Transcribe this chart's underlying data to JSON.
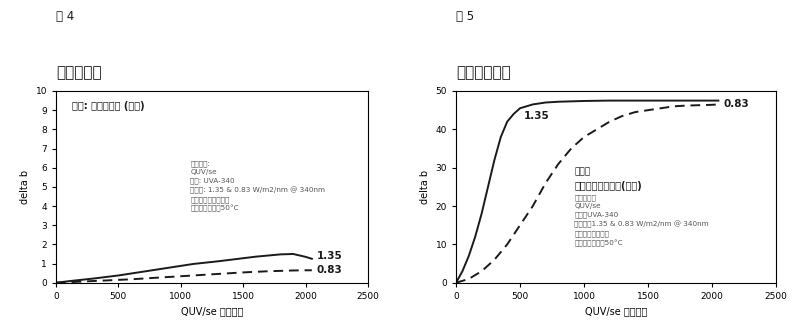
{
  "fig4": {
    "title_top": "图 4",
    "title_sub": "丙烯酸黄变",
    "material_label_bold": "材料: 丙烯酸薄片 (透明)",
    "annotation_text": "测试条件:\nQUV/se\n光源: UVA-340\n辐照度: 1.35 & 0.83 W/m2/nm @ 340nm\n循环：仅有紫外循环\n温度：黑板温度50°C",
    "xlabel": "QUV/se 暴露时间",
    "ylabel": "delta b",
    "xlim": [
      0,
      2500
    ],
    "ylim": [
      0,
      10
    ],
    "yticks": [
      0,
      1,
      2,
      3,
      4,
      5,
      6,
      7,
      8,
      9,
      10
    ],
    "xticks": [
      0,
      500,
      1000,
      1500,
      2000,
      2500
    ],
    "label_135": "1.35",
    "label_083": "0.83",
    "curve135_x": [
      0,
      100,
      200,
      300,
      400,
      500,
      600,
      700,
      800,
      900,
      1000,
      1100,
      1200,
      1300,
      1400,
      1500,
      1600,
      1700,
      1800,
      1900,
      2000,
      2050
    ],
    "curve135_y": [
      0.0,
      0.08,
      0.15,
      0.22,
      0.3,
      0.38,
      0.48,
      0.58,
      0.68,
      0.78,
      0.88,
      0.98,
      1.05,
      1.12,
      1.2,
      1.28,
      1.36,
      1.42,
      1.48,
      1.5,
      1.35,
      1.25
    ],
    "curve083_x": [
      0,
      100,
      200,
      300,
      400,
      500,
      600,
      700,
      800,
      900,
      1000,
      1100,
      1200,
      1300,
      1400,
      1500,
      1600,
      1700,
      1800,
      1900,
      2000,
      2050
    ],
    "curve083_y": [
      0.0,
      0.03,
      0.06,
      0.09,
      0.12,
      0.15,
      0.18,
      0.22,
      0.26,
      0.3,
      0.34,
      0.38,
      0.42,
      0.46,
      0.5,
      0.54,
      0.57,
      0.6,
      0.62,
      0.64,
      0.65,
      0.65
    ]
  },
  "fig5": {
    "title_top": "图 5",
    "title_sub": "聚苯乙烯黄变",
    "material_label": "材料：",
    "material_label_bold": "聚苯乙烯参照材料(透明)",
    "annotation_text": "测试条件：\nQUV/se\n光源：UVA-340\n辐照度：1.35 & 0.83 W/m2/nm @ 340nm\n循环：仅紫外光照\n温度：黑板温度50°C",
    "xlabel": "QUV/se 暴露时间",
    "ylabel": "delta b",
    "xlim": [
      0,
      2500
    ],
    "ylim": [
      0,
      50
    ],
    "yticks": [
      0,
      10,
      20,
      30,
      40,
      50
    ],
    "xticks": [
      0,
      500,
      1000,
      1500,
      2000,
      2500
    ],
    "label_135": "1.35",
    "label_083": "0.83",
    "curve135_x": [
      0,
      50,
      100,
      150,
      200,
      250,
      300,
      350,
      400,
      450,
      500,
      600,
      700,
      800,
      900,
      1000,
      1200,
      1400,
      1600,
      1800,
      2000,
      2050
    ],
    "curve135_y": [
      0,
      3,
      7,
      12,
      18,
      25,
      32,
      38,
      42,
      44,
      45.5,
      46.5,
      47,
      47.2,
      47.3,
      47.4,
      47.5,
      47.5,
      47.5,
      47.5,
      47.5,
      47.5
    ],
    "curve083_x": [
      0,
      100,
      200,
      300,
      400,
      500,
      600,
      700,
      800,
      900,
      1000,
      1100,
      1200,
      1300,
      1400,
      1500,
      1600,
      1700,
      1800,
      1900,
      2000,
      2050
    ],
    "curve083_y": [
      0,
      1,
      3,
      6,
      10,
      15,
      20,
      26,
      31,
      35,
      38,
      40,
      42,
      43.5,
      44.5,
      45,
      45.5,
      46,
      46.2,
      46.3,
      46.4,
      46.5
    ]
  },
  "bg_color": "#ffffff",
  "line_color": "#1a1a1a",
  "text_color": "#222222",
  "annotation_color": "#555555"
}
